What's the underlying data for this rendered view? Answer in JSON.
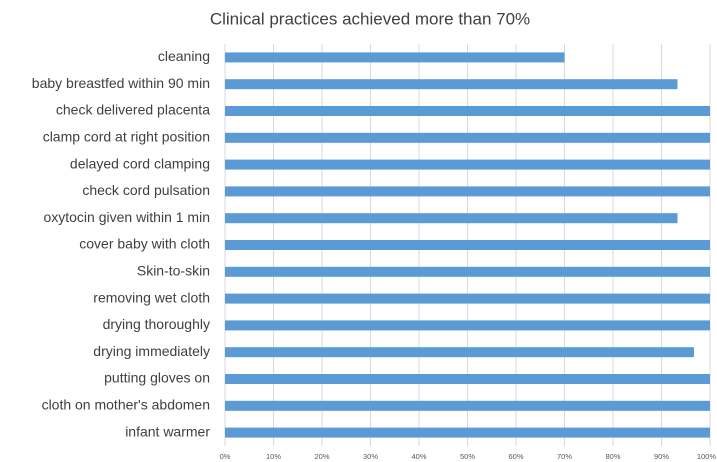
{
  "chart_data": {
    "type": "bar",
    "orientation": "horizontal",
    "title": "Clinical practices achieved more than 70%",
    "categories": [
      "cleaning",
      "baby breastfed within 90 min",
      "check delivered placenta",
      "clamp cord at right position",
      "delayed cord clamping",
      "check cord pulsation",
      "oxytocin given within 1 min",
      "cover baby with cloth",
      "Skin-to-skin",
      "removing wet cloth",
      "drying thoroughly",
      "drying immediately",
      "putting gloves on",
      "cloth on mother's abdomen",
      "infant warmer"
    ],
    "values": [
      70,
      93.3,
      100,
      100,
      100,
      100,
      93.3,
      100,
      100,
      100,
      100,
      96.7,
      100,
      100,
      100
    ],
    "color": "#5b9bd5",
    "xlim": [
      0,
      100
    ],
    "xticks": [
      {
        "value": 0,
        "label": "0%"
      },
      {
        "value": 10,
        "label": "10%"
      },
      {
        "value": 20,
        "label": "20%"
      },
      {
        "value": 30,
        "label": "30%"
      },
      {
        "value": 40,
        "label": "40%"
      },
      {
        "value": 50,
        "label": "50%"
      },
      {
        "value": 60,
        "label": "60%"
      },
      {
        "value": 70,
        "label": "70%"
      },
      {
        "value": 80,
        "label": "80%"
      },
      {
        "value": 90,
        "label": "90%"
      },
      {
        "value": 100,
        "label": "100%"
      }
    ],
    "grid": true
  }
}
